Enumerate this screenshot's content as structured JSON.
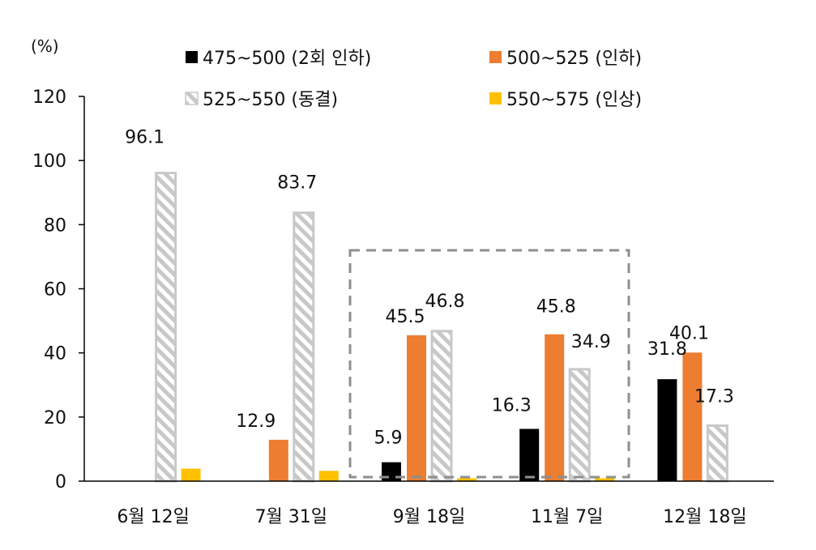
{
  "chart_data": {
    "type": "bar",
    "ylabel": "(%)",
    "ylim": [
      0,
      120
    ],
    "yticks": [
      "0",
      "20",
      "40",
      "60",
      "80",
      "100",
      "120"
    ],
    "categories": [
      "6월 12일",
      "7월 31일",
      "9월 18일",
      "11월 7일",
      "12월 18일"
    ],
    "series": [
      {
        "name": "475~500 (2회 인하)",
        "color": "#000000",
        "pattern": "solid",
        "values": [
          0,
          0,
          5.9,
          16.3,
          31.8
        ],
        "labels": [
          "",
          "",
          "5.9",
          "16.3",
          "31.8"
        ]
      },
      {
        "name": "500~525 (인하)",
        "color": "#ED7D31",
        "pattern": "solid",
        "values": [
          0,
          12.9,
          45.5,
          45.8,
          40.1
        ],
        "labels": [
          "",
          "12.9",
          "45.5",
          "45.8",
          "40.1"
        ]
      },
      {
        "name": "525~550 (동결)",
        "color": "#C8C8C8",
        "pattern": "hatch",
        "values": [
          96.1,
          83.7,
          46.8,
          34.9,
          17.3
        ],
        "labels": [
          "96.1",
          "83.7",
          "46.8",
          "34.9",
          "17.3"
        ]
      },
      {
        "name": "550~575 (인상)",
        "color": "#FFC000",
        "pattern": "solid",
        "values": [
          3.9,
          3.2,
          0.9,
          0.9,
          0
        ],
        "labels": [
          "",
          "",
          "",
          "",
          ""
        ]
      }
    ],
    "legend_position": "top",
    "highlight_box_categories": [
      "9월 18일",
      "11월 7일"
    ]
  }
}
